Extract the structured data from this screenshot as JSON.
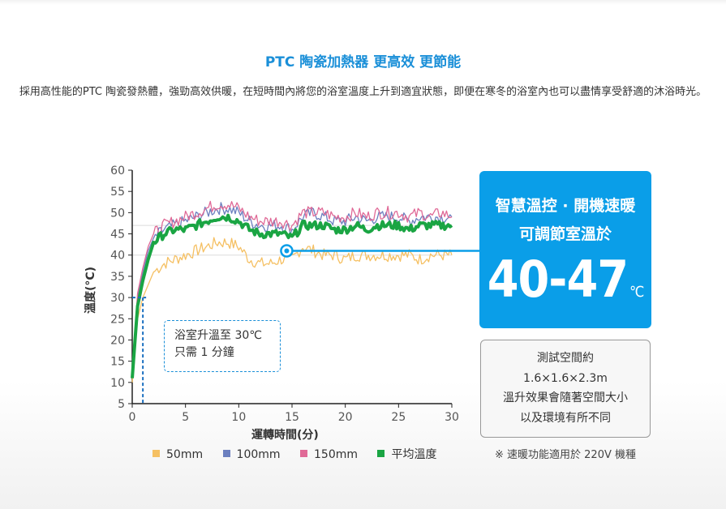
{
  "header": {
    "title": "PTC 陶瓷加熱器 更高效 更節能",
    "description": "採用高性能的PTC 陶瓷發熱體，強勁高效供暖，在短時間內將您的浴室溫度上升到適宜狀態，即便在寒冬的浴室內也可以盡情享受舒適的沐浴時光。"
  },
  "callout": {
    "line1": "浴室升溫至 30℃",
    "line2": "只需 1 分鐘"
  },
  "highlight": {
    "line1": "智慧溫控 · 開機速暖",
    "line2": "可調節室溫於",
    "value": "40-47",
    "unit": "℃"
  },
  "info": {
    "line1": "測試空間約",
    "line2": "1.6×1.6×2.3m",
    "line3": "溫升效果會隨著空間大小",
    "line4": "以及環境有所不同"
  },
  "note": "※ 速暖功能適用於 220V 機種",
  "chart_data": {
    "type": "line",
    "xlabel": "運轉時間(分)",
    "ylabel": "溫度(°C)",
    "xlim": [
      0,
      30
    ],
    "ylim": [
      5,
      60
    ],
    "xticks": [
      0,
      5,
      10,
      15,
      20,
      25,
      30
    ],
    "yticks": [
      5,
      10,
      15,
      20,
      25,
      30,
      35,
      40,
      45,
      50,
      55,
      60
    ],
    "reference_lines": {
      "x": 1,
      "y": 30
    },
    "marker": {
      "x": 14.5,
      "y": 41
    },
    "x": [
      0,
      0.5,
      1,
      1.5,
      2,
      3,
      4,
      5,
      6,
      7,
      8,
      9,
      10,
      11,
      12,
      13,
      14,
      15,
      16,
      17,
      18,
      19,
      20,
      21,
      22,
      23,
      24,
      25,
      26,
      27,
      28,
      29,
      30
    ],
    "series": [
      {
        "name": "50mm",
        "color": "#f5c063",
        "values": [
          10,
          25,
          30,
          33,
          36,
          38,
          39,
          40,
          41,
          42,
          43,
          43,
          42,
          39,
          38,
          38,
          39,
          39,
          42,
          41,
          40,
          40,
          39,
          40,
          40,
          40,
          40,
          40,
          40,
          39,
          40,
          40,
          40
        ]
      },
      {
        "name": "100mm",
        "color": "#6b7fbf",
        "values": [
          12,
          30,
          36,
          41,
          44,
          46,
          47,
          48,
          49,
          50,
          51,
          51,
          50,
          48,
          47,
          47,
          47,
          46,
          49,
          50,
          49,
          48,
          48,
          49,
          48,
          49,
          49,
          49,
          48,
          49,
          49,
          49,
          49
        ]
      },
      {
        "name": "150mm",
        "color": "#e06a97",
        "values": [
          13,
          31,
          37,
          42,
          45,
          47,
          48,
          49,
          50,
          51,
          52,
          52,
          51,
          49,
          48,
          48,
          48,
          47,
          50,
          50,
          50,
          49,
          49,
          50,
          49,
          50,
          50,
          50,
          49,
          50,
          49,
          50,
          49
        ]
      },
      {
        "name": "平均溫度",
        "color": "#1aa543",
        "values": [
          11,
          28,
          34,
          39,
          43,
          45,
          46,
          46,
          47,
          48,
          49,
          49,
          48,
          46,
          45,
          45,
          45,
          44,
          47,
          47,
          47,
          46,
          46,
          47,
          46,
          47,
          47,
          47,
          46,
          47,
          47,
          47,
          47
        ]
      }
    ]
  }
}
